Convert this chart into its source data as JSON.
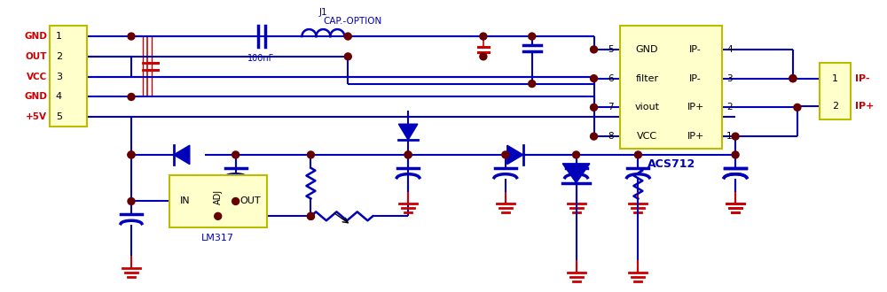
{
  "bg_color": "#ffffff",
  "wire_color": "#0000bb",
  "red_color": "#cc0000",
  "component_fill": "#ffffcc",
  "component_edge": "#bbbb00",
  "dot_color": "#660000",
  "connector_left_labels": [
    "GND",
    "OUT",
    "VCC",
    "GND",
    "+5V"
  ],
  "connector_left_pins": [
    "1",
    "2",
    "3",
    "4",
    "5"
  ],
  "acs_labels_left": [
    "GND",
    "filter",
    "viout",
    "VCC"
  ],
  "acs_labels_right": [
    "IP-",
    "IP-",
    "IP+",
    "IP+"
  ],
  "acs_pins_left": [
    "5",
    "6",
    "7",
    "8"
  ],
  "acs_pins_right": [
    "4",
    "3",
    "2",
    "1"
  ],
  "acs_name": "ACS712",
  "j1_label": "J1",
  "j1_sub": "CAP.-OPTION",
  "cap_label": "100nF",
  "lm317_label": "LM317",
  "connector_right_labels": [
    "IP-",
    "IP+"
  ],
  "connector_right_pins": [
    "1",
    "2"
  ]
}
